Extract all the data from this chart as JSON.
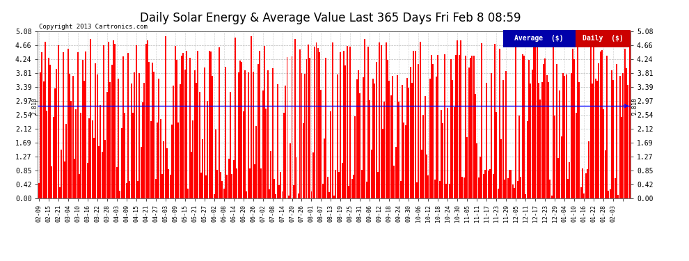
{
  "title": "Daily Solar Energy & Average Value Last 365 Days Fri Feb 8 08:59",
  "copyright": "Copyright 2013 Cartronics.com",
  "average_value": 2.81,
  "average_label": "2.810",
  "y_max": 5.08,
  "y_min": 0.0,
  "yticks": [
    0.0,
    0.42,
    0.85,
    1.27,
    1.69,
    2.12,
    2.54,
    2.97,
    3.39,
    3.81,
    4.24,
    4.66,
    5.08
  ],
  "bar_color": "#FF0000",
  "avg_line_color": "#0000FF",
  "bg_color": "#FFFFFF",
  "plot_bg_color": "#FFFFFF",
  "grid_color": "#AAAAAA",
  "title_fontsize": 12,
  "legend_avg_color": "#0000AA",
  "legend_daily_color": "#CC0000",
  "x_labels": [
    "02-09",
    "02-15",
    "02-21",
    "03-04",
    "03-10",
    "03-16",
    "03-22",
    "03-28",
    "04-03",
    "04-09",
    "04-15",
    "04-21",
    "04-27",
    "05-03",
    "05-09",
    "05-15",
    "05-21",
    "05-27",
    "06-02",
    "06-08",
    "06-14",
    "06-20",
    "06-26",
    "07-02",
    "07-08",
    "07-14",
    "07-20",
    "07-26",
    "08-01",
    "08-07",
    "08-13",
    "08-19",
    "08-25",
    "08-31",
    "09-06",
    "09-12",
    "09-18",
    "09-24",
    "09-30",
    "10-06",
    "10-12",
    "10-18",
    "10-24",
    "10-30",
    "11-05",
    "11-11",
    "11-17",
    "11-23",
    "11-29",
    "12-05",
    "12-11",
    "12-17",
    "12-23",
    "12-29",
    "01-04",
    "01-10",
    "01-16",
    "01-22",
    "01-28",
    "02-03"
  ],
  "n_days": 365,
  "tick_every": 6
}
